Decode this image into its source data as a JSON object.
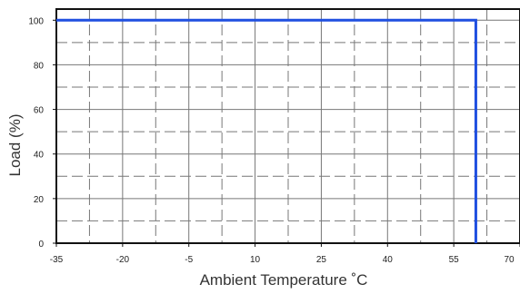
{
  "chart_data": {
    "type": "line",
    "xlabel": "Ambient Temperature ˚C",
    "ylabel": "Load (%)",
    "xlim": [
      -35,
      70
    ],
    "ylim": [
      0,
      105
    ],
    "x_ticks": [
      -35,
      -20,
      -5,
      10,
      25,
      40,
      55,
      70
    ],
    "x_tick_labels": [
      "-35",
      "-20",
      "-5",
      "10",
      "25",
      "40",
      "55",
      "70"
    ],
    "y_ticks": [
      0,
      20,
      40,
      60,
      80,
      100
    ],
    "y_tick_labels": [
      "0",
      "20",
      "40",
      "60",
      "80",
      "100"
    ],
    "grid": true,
    "series": [
      {
        "x": [
          -35,
          60,
          60
        ],
        "y": [
          100,
          100,
          0
        ],
        "color": "#1f4fe0"
      }
    ]
  }
}
